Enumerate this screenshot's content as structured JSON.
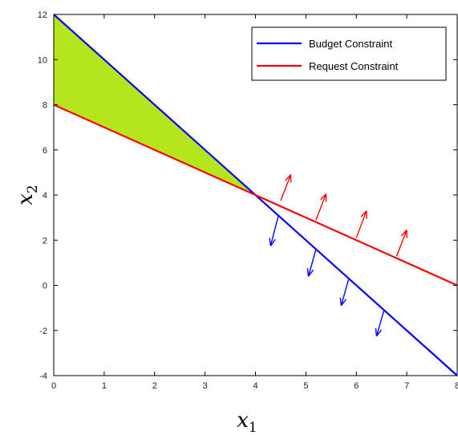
{
  "chart_data": {
    "type": "line",
    "xlim": [
      0,
      8
    ],
    "ylim": [
      -4,
      12
    ],
    "x_ticks": [
      "0",
      "1",
      "2",
      "3",
      "4",
      "5",
      "6",
      "7",
      "8"
    ],
    "y_ticks": [
      "-4",
      "-2",
      "0",
      "2",
      "4",
      "6",
      "8",
      "10",
      "12"
    ],
    "xlabel": "x",
    "xlabel_sub": "1",
    "ylabel": "x",
    "ylabel_sub": "2",
    "grid": false,
    "legend_position": "top-right",
    "series": [
      {
        "name": "Budget Constraint",
        "color": "#0000ff",
        "x": [
          0,
          8
        ],
        "y": [
          12,
          -4
        ]
      },
      {
        "name": "Request Constraint",
        "color": "#ff0000",
        "x": [
          0,
          8
        ],
        "y": [
          8,
          0
        ]
      }
    ],
    "feasible_region": {
      "color": "#b5e61d",
      "points": [
        [
          0,
          12
        ],
        [
          4,
          4
        ],
        [
          0,
          8
        ]
      ]
    },
    "arrows": [
      {
        "series": "Request Constraint",
        "color": "#ff0000",
        "from": [
          4.5,
          3.75
        ],
        "to": [
          4.7,
          4.9
        ]
      },
      {
        "series": "Request Constraint",
        "color": "#ff0000",
        "from": [
          5.2,
          2.9
        ],
        "to": [
          5.4,
          4.05
        ]
      },
      {
        "series": "Request Constraint",
        "color": "#ff0000",
        "from": [
          6.0,
          2.1
        ],
        "to": [
          6.2,
          3.3
        ]
      },
      {
        "series": "Request Constraint",
        "color": "#ff0000",
        "from": [
          6.8,
          1.3
        ],
        "to": [
          7.0,
          2.45
        ]
      },
      {
        "series": "Budget Constraint",
        "color": "#0000ff",
        "from": [
          4.45,
          3.05
        ],
        "to": [
          4.3,
          1.75
        ]
      },
      {
        "series": "Budget Constraint",
        "color": "#0000ff",
        "from": [
          5.2,
          1.6
        ],
        "to": [
          5.05,
          0.4
        ]
      },
      {
        "series": "Budget Constraint",
        "color": "#0000ff",
        "from": [
          5.85,
          0.3
        ],
        "to": [
          5.7,
          -0.9
        ]
      },
      {
        "series": "Budget Constraint",
        "color": "#0000ff",
        "from": [
          6.55,
          -1.1
        ],
        "to": [
          6.4,
          -2.25
        ]
      }
    ]
  }
}
